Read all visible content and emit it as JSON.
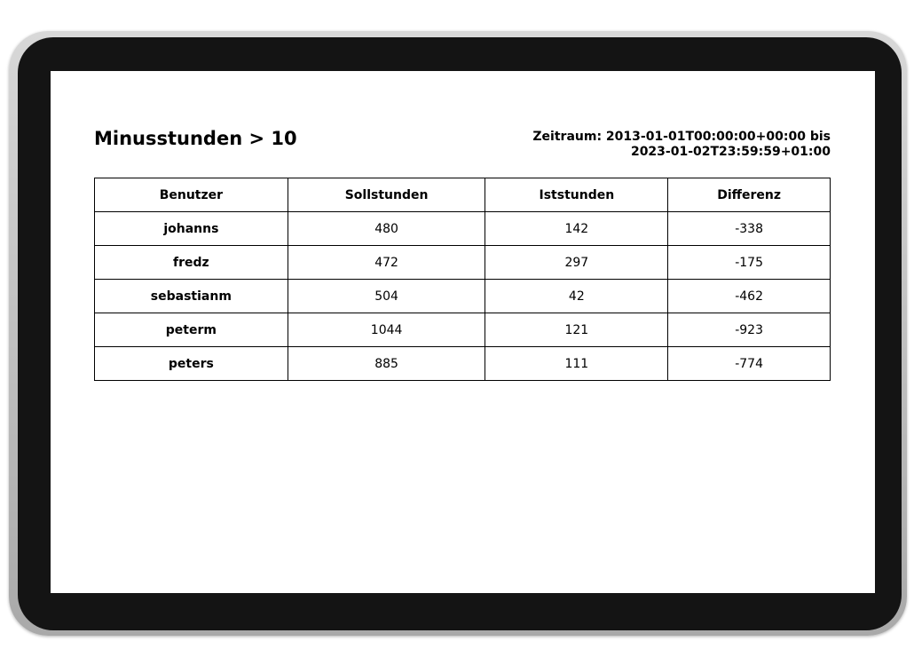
{
  "report": {
    "title": "Minusstunden > 10",
    "range_line1": "Zeitraum: 2013-01-01T00:00:00+00:00 bis",
    "range_line2": "2023-01-02T23:59:59+01:00",
    "columns": [
      "Benutzer",
      "Sollstunden",
      "Iststunden",
      "Differenz"
    ],
    "rows": [
      [
        "johanns",
        "480",
        "142",
        "-338"
      ],
      [
        "fredz",
        "472",
        "297",
        "-175"
      ],
      [
        "sebastianm",
        "504",
        "42",
        "-462"
      ],
      [
        "peterm",
        "1044",
        "121",
        "-923"
      ],
      [
        "peters",
        "885",
        "111",
        "-774"
      ]
    ]
  }
}
